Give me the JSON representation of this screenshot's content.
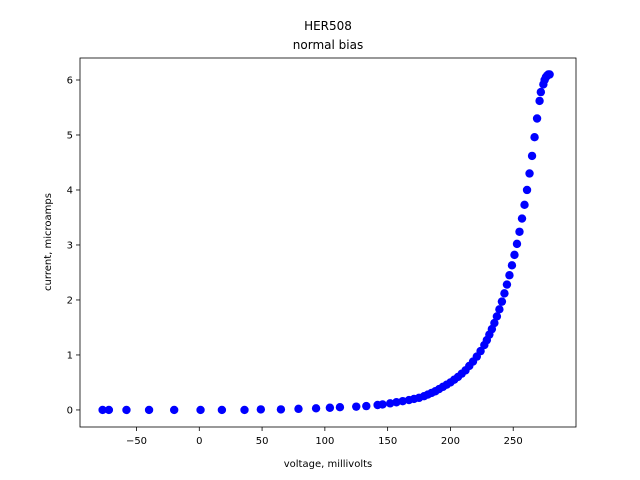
{
  "chart_data": {
    "type": "scatter",
    "title": "HER508",
    "subtitle": "normal bias",
    "xlabel": "voltage, millivolts",
    "ylabel": "current, microamps",
    "xlim": [
      -95,
      300
    ],
    "ylim": [
      -0.31,
      6.4
    ],
    "xticks": [
      -50,
      0,
      50,
      100,
      150,
      200,
      250
    ],
    "xtick_labels": [
      "−50",
      "0",
      "50",
      "100",
      "150",
      "200",
      "250"
    ],
    "yticks": [
      0,
      1,
      2,
      3,
      4,
      5,
      6
    ],
    "ytick_labels": [
      "0",
      "1",
      "2",
      "3",
      "4",
      "5",
      "6"
    ],
    "grid": false,
    "marker_color": "#0000ff",
    "series": [
      {
        "x": [
          -77,
          -72,
          -58,
          -40,
          -20,
          1,
          18,
          36,
          49,
          65,
          79,
          93,
          104,
          112,
          125,
          133,
          142,
          146,
          152,
          157,
          162,
          167,
          171,
          175,
          179,
          182,
          185,
          188,
          191,
          194,
          197,
          200,
          203,
          206,
          209,
          212,
          215,
          218,
          221,
          224,
          227,
          229,
          231,
          233,
          235,
          237,
          239,
          241,
          243,
          245,
          247,
          249,
          251,
          253,
          255,
          257,
          259,
          261,
          263,
          265,
          267,
          269,
          271,
          272,
          274,
          275,
          276,
          277,
          278,
          279
        ],
        "y": [
          0.0,
          0.0,
          0.0,
          0.0,
          0.0,
          0.0,
          0.0,
          0.0,
          0.01,
          0.01,
          0.02,
          0.03,
          0.04,
          0.05,
          0.06,
          0.07,
          0.09,
          0.1,
          0.12,
          0.14,
          0.16,
          0.18,
          0.2,
          0.22,
          0.25,
          0.28,
          0.31,
          0.34,
          0.38,
          0.42,
          0.46,
          0.5,
          0.55,
          0.6,
          0.66,
          0.72,
          0.8,
          0.88,
          0.97,
          1.07,
          1.18,
          1.27,
          1.37,
          1.47,
          1.58,
          1.7,
          1.83,
          1.97,
          2.12,
          2.28,
          2.45,
          2.63,
          2.82,
          3.02,
          3.24,
          3.48,
          3.73,
          4.0,
          4.3,
          4.62,
          4.96,
          5.3,
          5.62,
          5.78,
          5.92,
          6.0,
          6.05,
          6.08,
          6.1,
          6.1
        ]
      }
    ]
  }
}
